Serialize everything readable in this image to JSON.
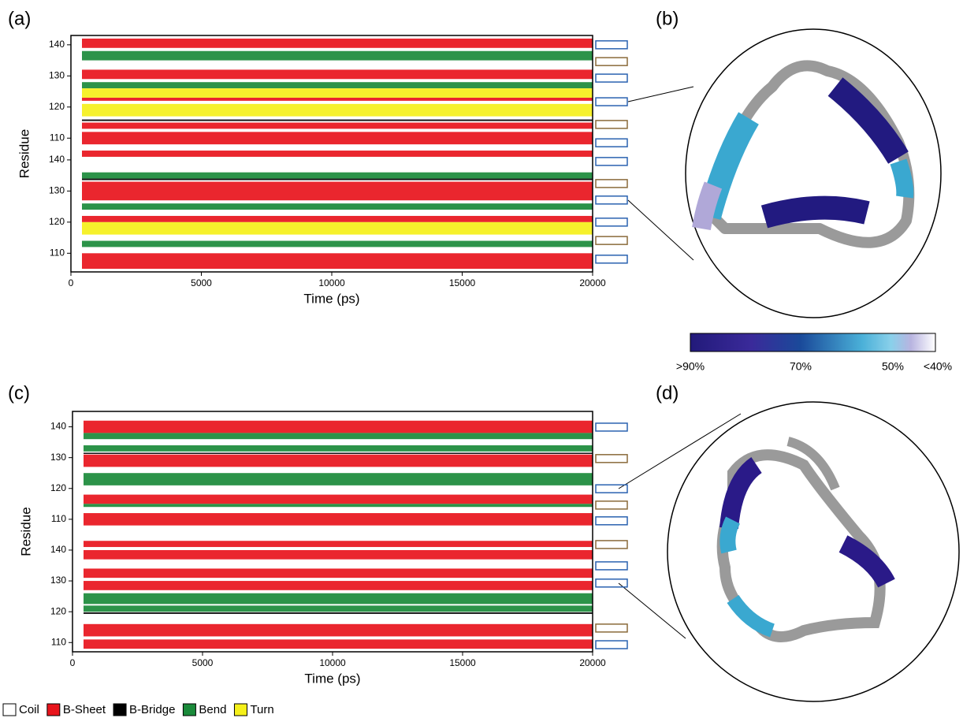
{
  "panel_labels": [
    "(a)",
    "(b)",
    "(c)",
    "(d)"
  ],
  "legend": [
    {
      "name": "Coil",
      "color": "#ffffff"
    },
    {
      "name": "B-Sheet",
      "color": "#e8141c"
    },
    {
      "name": "B-Bridge",
      "color": "#000000"
    },
    {
      "name": "Bend",
      "color": "#1a8a3a"
    },
    {
      "name": "Turn",
      "color": "#f5f01a"
    }
  ],
  "colorbar": {
    "labels": [
      ">90%",
      "70%",
      "50%",
      "<40%"
    ]
  },
  "chart_data": [
    {
      "type": "dssp",
      "x_label": "Time (ps)",
      "y_label": "Residue",
      "xlim": [
        0,
        20000
      ],
      "xticks": [
        0,
        5000,
        10000,
        15000,
        20000
      ],
      "ylim": [
        104,
        180
      ],
      "yticks": [
        110,
        120,
        130,
        140,
        {
          "value": 147,
          "label": "110"
        },
        {
          "value": 157,
          "label": "120"
        },
        {
          "value": 167,
          "label": "130"
        },
        {
          "value": 177,
          "label": "140"
        }
      ],
      "series": [
        {
          "name": "B-Sheet",
          "color": "#e8141c",
          "rows": [
            [
              105,
              110
            ],
            [
              120,
              122
            ],
            [
              127,
              133
            ],
            [
              141,
              143
            ],
            [
              145,
              149
            ],
            [
              150,
              152
            ],
            [
              159,
              160
            ],
            [
              166,
              169
            ],
            [
              176,
              179
            ]
          ]
        },
        {
          "name": "Bend",
          "color": "#1a8a3a",
          "rows": [
            [
              112,
              114
            ],
            [
              124,
              126
            ],
            [
              134,
              136
            ],
            [
              163,
              165
            ],
            [
              172,
              175
            ]
          ]
        },
        {
          "name": "Turn",
          "color": "#f5f01a",
          "rows": [
            [
              116,
              120
            ],
            [
              154,
              158
            ],
            [
              160,
              163
            ]
          ]
        },
        {
          "name": "B-Bridge",
          "color": "#000000",
          "rows": [
            [
              133.5,
              134
            ],
            [
              152.5,
              153
            ]
          ]
        }
      ],
      "boxes": [
        {
          "y": 177,
          "color": "#2a62b0"
        },
        {
          "y": 171.6,
          "color": "#8a6a3a"
        },
        {
          "y": 166.3,
          "color": "#2a62b0"
        },
        {
          "y": 158.7,
          "color": "#2a62b0"
        },
        {
          "y": 151.4,
          "color": "#8a6a3a"
        },
        {
          "y": 145.5,
          "color": "#2a62b0"
        },
        {
          "y": 139.5,
          "color": "#2a62b0"
        },
        {
          "y": 132.4,
          "color": "#8a6a3a"
        },
        {
          "y": 127.1,
          "color": "#2a62b0"
        },
        {
          "y": 120,
          "color": "#2a62b0"
        },
        {
          "y": 114.1,
          "color": "#8a6a3a"
        },
        {
          "y": 108.1,
          "color": "#2a62b0"
        }
      ]
    },
    {
      "type": "dssp",
      "x_label": "Time (ps)",
      "y_label": "Residue",
      "xlim": [
        0,
        20000
      ],
      "xticks": [
        0,
        5000,
        10000,
        15000,
        20000
      ],
      "ylim": [
        107,
        185
      ],
      "yticks": [
        110,
        120,
        130,
        140,
        {
          "value": 150,
          "label": "110"
        },
        {
          "value": 160,
          "label": "120"
        },
        {
          "value": 170,
          "label": "130"
        },
        {
          "value": 180,
          "label": "140"
        }
      ],
      "series": [
        {
          "name": "B-Sheet",
          "color": "#e8141c",
          "rows": [
            [
              108,
              111
            ],
            [
              112,
              116
            ],
            [
              127,
              130
            ],
            [
              131,
              134
            ],
            [
              137,
              140
            ],
            [
              141,
              143
            ],
            [
              148,
              152
            ],
            [
              155,
              158
            ],
            [
              167,
              171
            ],
            [
              178,
              182
            ]
          ]
        },
        {
          "name": "Bend",
          "color": "#1a8a3a",
          "rows": [
            [
              120,
              122
            ],
            [
              122.5,
              126
            ],
            [
              154,
              155
            ],
            [
              161,
              165
            ],
            [
              172,
              174
            ],
            [
              176,
              178
            ]
          ]
        },
        {
          "name": "B-Bridge",
          "color": "#000000",
          "rows": [
            [
              119.3,
              119.8
            ],
            [
              171.2,
              171.6
            ]
          ]
        }
      ],
      "boxes": [
        {
          "y": 179.9,
          "color": "#2a62b0"
        },
        {
          "y": 169.7,
          "color": "#8a6a3a"
        },
        {
          "y": 159.9,
          "color": "#2a62b0"
        },
        {
          "y": 154.6,
          "color": "#8a6a3a"
        },
        {
          "y": 149.5,
          "color": "#2a62b0"
        },
        {
          "y": 141.8,
          "color": "#8a6a3a"
        },
        {
          "y": 134.9,
          "color": "#2a62b0"
        },
        {
          "y": 129.3,
          "color": "#2a62b0"
        },
        {
          "y": 114.7,
          "color": "#8a6a3a"
        },
        {
          "y": 109.3,
          "color": "#2a62b0"
        }
      ]
    }
  ]
}
